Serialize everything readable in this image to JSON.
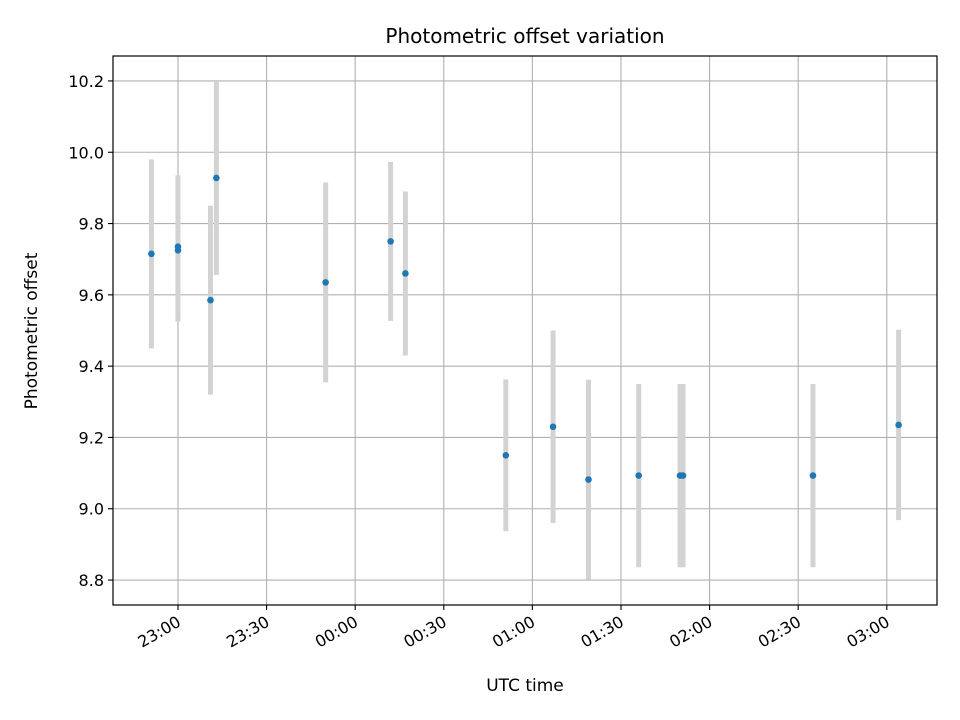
{
  "chart_data": {
    "type": "scatter",
    "title": "Photometric offset variation",
    "xlabel": "UTC time",
    "ylabel": "Photometric offset",
    "grid": true,
    "xlim": [
      "22:38",
      "03:17"
    ],
    "ylim": [
      8.73,
      10.27
    ],
    "x_ticks": [
      "23:00",
      "23:30",
      "00:00",
      "00:30",
      "01:00",
      "01:30",
      "02:00",
      "02:30",
      "03:00"
    ],
    "y_ticks": [
      "8.8",
      "9.0",
      "9.2",
      "9.4",
      "9.6",
      "9.8",
      "10.0",
      "10.2"
    ],
    "marker_color": "#1f77b4",
    "errorbar_color": "#d3d3d3",
    "points": [
      {
        "time": "22:51",
        "y": 9.715,
        "err": 0.265
      },
      {
        "time": "23:00",
        "y": 9.725,
        "err": 0.2
      },
      {
        "time": "23:00",
        "y": 9.735,
        "err": 0.2
      },
      {
        "time": "23:11",
        "y": 9.585,
        "err": 0.265
      },
      {
        "time": "23:13",
        "y": 9.928,
        "err": 0.272
      },
      {
        "time": "23:50",
        "y": 9.635,
        "err": 0.28
      },
      {
        "time": "00:12",
        "y": 9.75,
        "err": 0.223
      },
      {
        "time": "00:17",
        "y": 9.66,
        "err": 0.23
      },
      {
        "time": "00:51",
        "y": 9.15,
        "err": 0.213
      },
      {
        "time": "01:07",
        "y": 9.23,
        "err": 0.27
      },
      {
        "time": "01:19",
        "y": 9.082,
        "err": 0.28
      },
      {
        "time": "01:36",
        "y": 9.093,
        "err": 0.257
      },
      {
        "time": "01:50",
        "y": 9.093,
        "err": 0.257
      },
      {
        "time": "01:51",
        "y": 9.093,
        "err": 0.257
      },
      {
        "time": "02:35",
        "y": 9.093,
        "err": 0.257
      },
      {
        "time": "03:04",
        "y": 9.235,
        "err": 0.267
      }
    ]
  }
}
